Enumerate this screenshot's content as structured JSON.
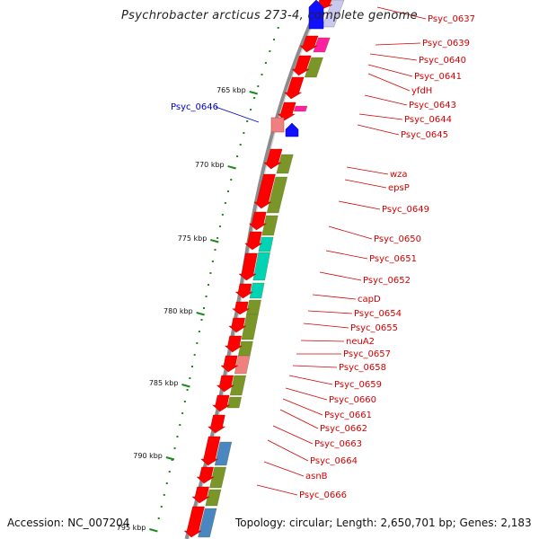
{
  "title": "Psychrobacter arcticus 273-4, complete genome",
  "footer": {
    "accession_label": "Accession:",
    "accession": "NC_007204",
    "topology_label": "Topology:",
    "topology": "circular",
    "length_label": "Length:",
    "length": "2,650,701 bp",
    "genes_label": "Genes:",
    "genes": "2,183"
  },
  "colors": {
    "forward_gene": "#ff0000",
    "reverse_gene": "#ff0000",
    "backbone": "#808080",
    "ruler": "#1e8a1e",
    "label_red": "#d40000",
    "label_blue": "#0000c8",
    "cog_olive": "#7a9628",
    "cog_teal": "#00d4b4",
    "cog_blue": "#4a86c0",
    "cog_pink": "#f08080",
    "cog_magenta": "#ff20a0",
    "cog_lavender": "#c8c8f0"
  },
  "ruler_labels": [
    "765 kbp",
    "770 kbp",
    "775 kbp",
    "780 kbp",
    "785 kbp",
    "790 kbp",
    "795 kbp"
  ],
  "gene_labels": [
    {
      "name": "Psyc_0637",
      "strand": "forward"
    },
    {
      "name": "Psyc_0639",
      "strand": "forward"
    },
    {
      "name": "Psyc_0640",
      "strand": "forward"
    },
    {
      "name": "Psyc_0641",
      "strand": "forward"
    },
    {
      "name": "yfdH",
      "strand": "forward"
    },
    {
      "name": "Psyc_0643",
      "strand": "forward"
    },
    {
      "name": "Psyc_0644",
      "strand": "forward"
    },
    {
      "name": "Psyc_0645",
      "strand": "forward"
    },
    {
      "name": "Psyc_0646",
      "strand": "reverse"
    },
    {
      "name": "wza",
      "strand": "forward"
    },
    {
      "name": "epsP",
      "strand": "forward"
    },
    {
      "name": "Psyc_0649",
      "strand": "forward"
    },
    {
      "name": "Psyc_0650",
      "strand": "forward"
    },
    {
      "name": "Psyc_0651",
      "strand": "forward"
    },
    {
      "name": "Psyc_0652",
      "strand": "forward"
    },
    {
      "name": "capD",
      "strand": "forward"
    },
    {
      "name": "Psyc_0654",
      "strand": "forward"
    },
    {
      "name": "Psyc_0655",
      "strand": "forward"
    },
    {
      "name": "neuA2",
      "strand": "forward"
    },
    {
      "name": "Psyc_0657",
      "strand": "forward"
    },
    {
      "name": "Psyc_0658",
      "strand": "forward"
    },
    {
      "name": "Psyc_0659",
      "strand": "forward"
    },
    {
      "name": "Psyc_0660",
      "strand": "forward"
    },
    {
      "name": "Psyc_0661",
      "strand": "forward"
    },
    {
      "name": "Psyc_0662",
      "strand": "forward"
    },
    {
      "name": "Psyc_0663",
      "strand": "forward"
    },
    {
      "name": "Psyc_0664",
      "strand": "forward"
    },
    {
      "name": "asnB",
      "strand": "forward"
    },
    {
      "name": "Psyc_0666",
      "strand": "forward"
    }
  ]
}
